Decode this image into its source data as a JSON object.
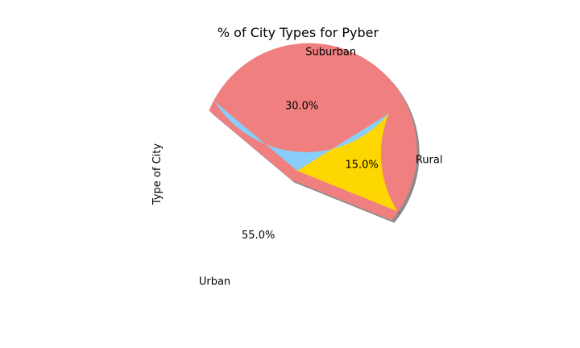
{
  "chart_data": {
    "type": "pie",
    "title": "% of City Types for Pyber",
    "ylabel": "Type of City",
    "slices": [
      {
        "label": "Urban",
        "value": 55.0,
        "pct_label": "55.0%",
        "color": "#F08080",
        "explode": true
      },
      {
        "label": "Rural",
        "value": 15.0,
        "pct_label": "15.0%",
        "color": "#FFD700",
        "explode": false
      },
      {
        "label": "Suburban",
        "value": 30.0,
        "pct_label": "30.0%",
        "color": "#87CEFA",
        "explode": false
      }
    ],
    "start_angle_deg": 140,
    "shadow": true,
    "legend": "none"
  }
}
